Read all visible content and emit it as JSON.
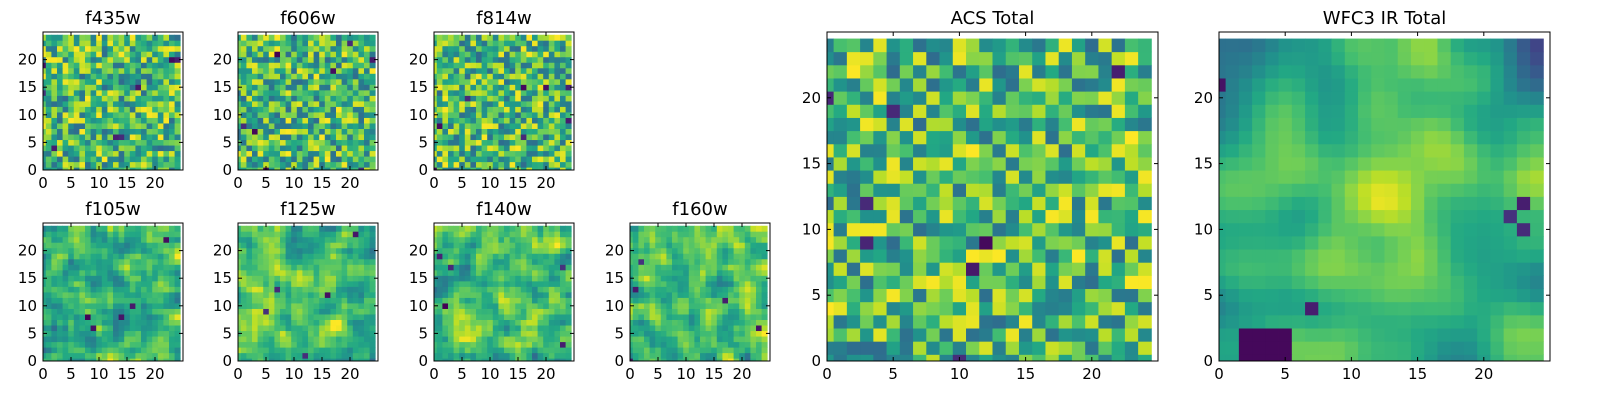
{
  "figure": {
    "description_label": ""
  },
  "chart_data": [
    {
      "type": "heatmap",
      "title": "f435w",
      "grid_size": 25,
      "colormap": "viridis",
      "xticks": [
        0,
        5,
        10,
        15,
        20
      ],
      "yticks": [
        0,
        5,
        10,
        15,
        20
      ],
      "xlim": [
        0,
        25
      ],
      "ylim": [
        0,
        25
      ],
      "pattern": "noise",
      "seed": 11
    },
    {
      "type": "heatmap",
      "title": "f606w",
      "grid_size": 25,
      "colormap": "viridis",
      "xticks": [
        0,
        5,
        10,
        15,
        20
      ],
      "yticks": [
        0,
        5,
        10,
        15,
        20
      ],
      "xlim": [
        0,
        25
      ],
      "ylim": [
        0,
        25
      ],
      "pattern": "noise",
      "seed": 23
    },
    {
      "type": "heatmap",
      "title": "f814w",
      "grid_size": 25,
      "colormap": "viridis",
      "xticks": [
        0,
        5,
        10,
        15,
        20
      ],
      "yticks": [
        0,
        5,
        10,
        15,
        20
      ],
      "xlim": [
        0,
        25
      ],
      "ylim": [
        0,
        25
      ],
      "pattern": "noise",
      "seed": 37
    },
    {
      "type": "heatmap",
      "title": "f105w",
      "grid_size": 25,
      "colormap": "viridis",
      "xticks": [
        0,
        5,
        10,
        15,
        20
      ],
      "yticks": [
        0,
        5,
        10,
        15,
        20
      ],
      "xlim": [
        0,
        25
      ],
      "ylim": [
        0,
        25
      ],
      "pattern": "smooth",
      "seed": 41
    },
    {
      "type": "heatmap",
      "title": "f125w",
      "grid_size": 25,
      "colormap": "viridis",
      "xticks": [
        0,
        5,
        10,
        15,
        20
      ],
      "yticks": [
        0,
        5,
        10,
        15,
        20
      ],
      "xlim": [
        0,
        25
      ],
      "ylim": [
        0,
        25
      ],
      "pattern": "smooth",
      "seed": 53
    },
    {
      "type": "heatmap",
      "title": "f140w",
      "grid_size": 25,
      "colormap": "viridis",
      "xticks": [
        0,
        5,
        10,
        15,
        20
      ],
      "yticks": [
        0,
        5,
        10,
        15,
        20
      ],
      "xlim": [
        0,
        25
      ],
      "ylim": [
        0,
        25
      ],
      "pattern": "smooth",
      "seed": 67
    },
    {
      "type": "heatmap",
      "title": "f160w",
      "grid_size": 25,
      "colormap": "viridis",
      "xticks": [
        0,
        5,
        10,
        15,
        20
      ],
      "yticks": [
        0,
        5,
        10,
        15,
        20
      ],
      "xlim": [
        0,
        25
      ],
      "ylim": [
        0,
        25
      ],
      "pattern": "smooth",
      "seed": 79
    },
    {
      "type": "heatmap",
      "title": "ACS Total",
      "grid_size": 25,
      "colormap": "viridis",
      "xticks": [
        0,
        5,
        10,
        15,
        20
      ],
      "yticks": [
        0,
        5,
        10,
        15,
        20
      ],
      "xlim": [
        0,
        25
      ],
      "ylim": [
        0,
        25
      ],
      "pattern": "noise",
      "seed": 97
    },
    {
      "type": "heatmap",
      "title": "WFC3 IR Total",
      "grid_size": 25,
      "colormap": "viridis",
      "xticks": [
        0,
        5,
        10,
        15,
        20
      ],
      "yticks": [
        0,
        5,
        10,
        15,
        20
      ],
      "xlim": [
        0,
        25
      ],
      "ylim": [
        0,
        25
      ],
      "pattern": "blob",
      "seed": 103
    }
  ]
}
